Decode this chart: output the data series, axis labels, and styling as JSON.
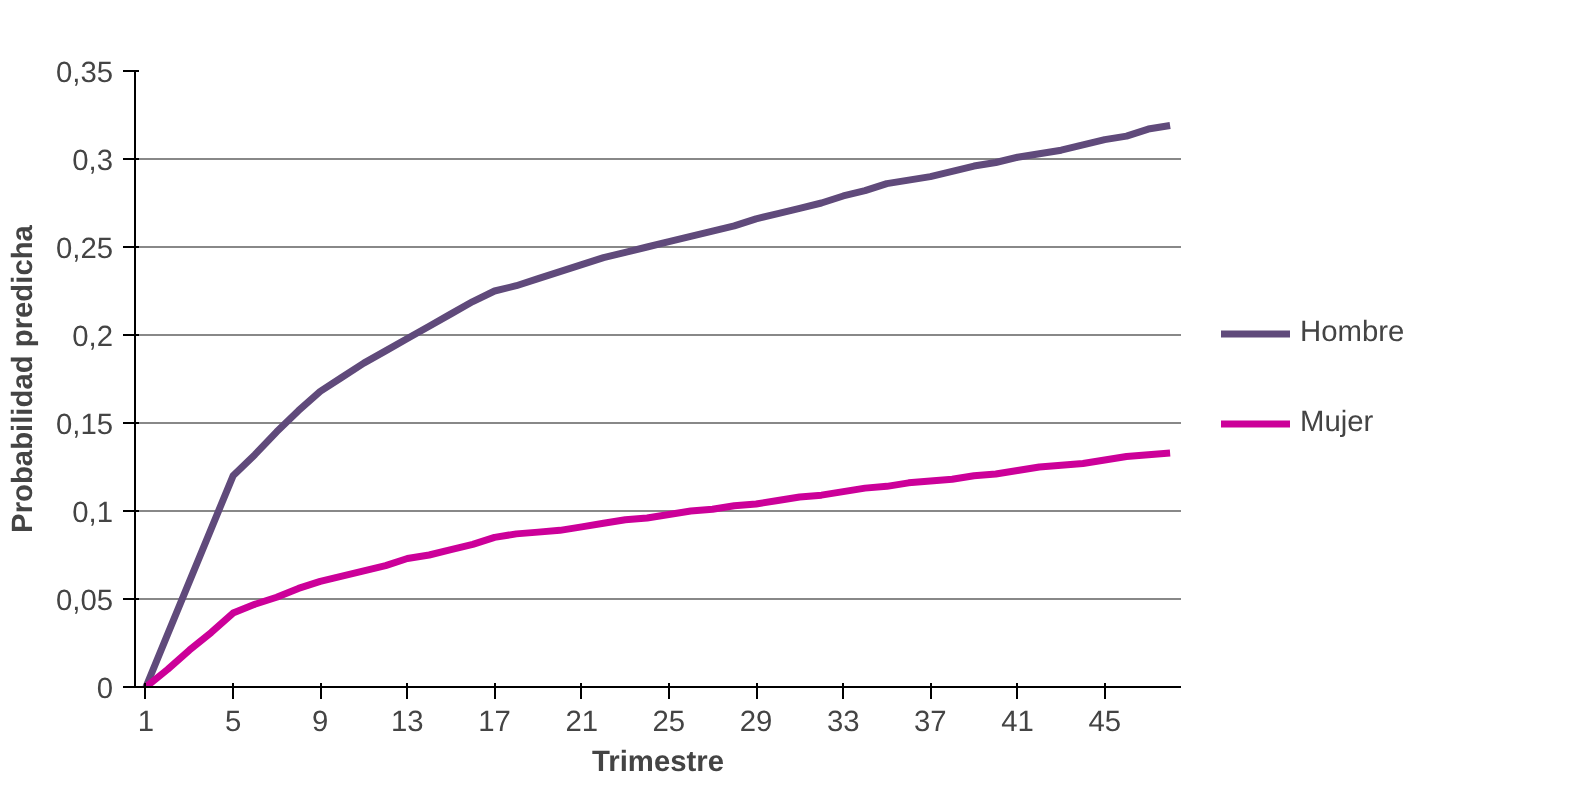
{
  "chart_data": {
    "type": "line",
    "xlabel": "Trimestre",
    "ylabel": "Probabilidad predicha",
    "categories": [
      "1",
      null,
      null,
      null,
      "5",
      null,
      null,
      null,
      "9",
      null,
      null,
      null,
      "13",
      null,
      null,
      null,
      "17",
      null,
      null,
      null,
      "21",
      null,
      null,
      null,
      "25",
      null,
      null,
      null,
      "29",
      null,
      null,
      null,
      "33",
      null,
      null,
      null,
      "37",
      null,
      null,
      null,
      "41",
      null,
      null,
      null,
      "45",
      null,
      null,
      null
    ],
    "series": [
      {
        "name": "Hombre",
        "color": "#604a7b",
        "values": [
          0,
          0.03,
          0.06,
          0.09,
          0.12,
          0.132,
          0.145,
          0.157,
          0.168,
          0.176,
          0.184,
          0.191,
          0.198,
          0.205,
          0.212,
          0.219,
          0.225,
          0.228,
          0.232,
          0.236,
          0.24,
          0.244,
          0.247,
          0.25,
          0.253,
          0.256,
          0.259,
          0.262,
          0.266,
          0.269,
          0.272,
          0.275,
          0.279,
          0.282,
          0.286,
          0.288,
          0.29,
          0.293,
          0.296,
          0.298,
          0.301,
          0.303,
          0.305,
          0.308,
          0.311,
          0.313,
          0.317,
          0.319
        ]
      },
      {
        "name": "Mujer",
        "color": "#cc0099",
        "values": [
          0,
          0.01,
          0.021,
          0.031,
          0.042,
          0.047,
          0.051,
          0.056,
          0.06,
          0.063,
          0.066,
          0.069,
          0.073,
          0.075,
          0.078,
          0.081,
          0.085,
          0.087,
          0.088,
          0.089,
          0.091,
          0.093,
          0.095,
          0.096,
          0.098,
          0.1,
          0.101,
          0.103,
          0.104,
          0.106,
          0.108,
          0.109,
          0.111,
          0.113,
          0.114,
          0.116,
          0.117,
          0.118,
          0.12,
          0.121,
          0.123,
          0.125,
          0.126,
          0.127,
          0.129,
          0.131,
          0.132,
          0.133
        ]
      }
    ],
    "ylim": [
      0,
      0.35
    ],
    "yticks": [
      0,
      {
        "value": 0.05,
        "label": "0,05"
      },
      {
        "value": 0.1,
        "label": "0,1"
      },
      {
        "value": 0.15,
        "label": "0,15"
      },
      {
        "value": 0.2,
        "label": "0,2"
      },
      {
        "value": 0.25,
        "label": "0,25"
      },
      {
        "value": 0.3,
        "label": "0,3"
      },
      {
        "value": 0.35,
        "label": "0,35"
      }
    ],
    "grid": "y",
    "legend": "right",
    "marker": "none",
    "line_style": "solid"
  }
}
